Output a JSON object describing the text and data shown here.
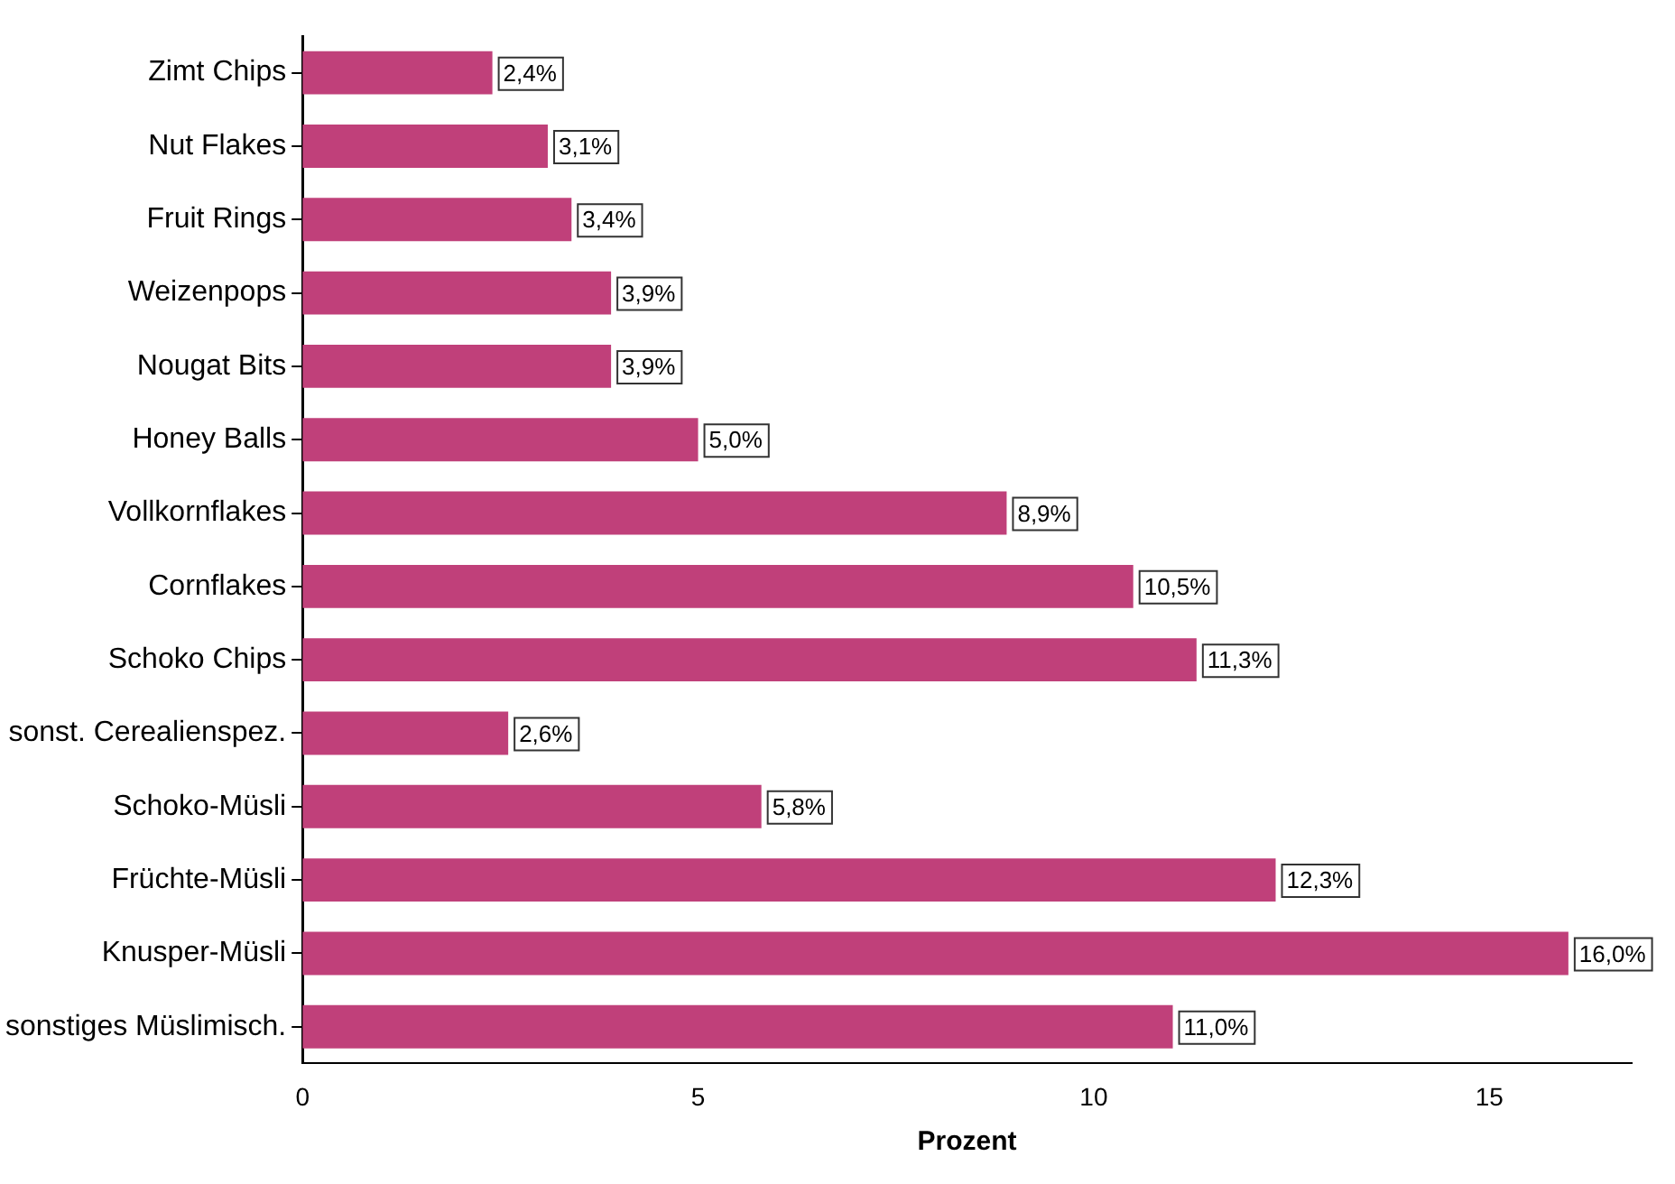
{
  "chart_data": {
    "type": "bar",
    "orientation": "horizontal",
    "xlabel": "Prozent",
    "categories": [
      "Zimt Chips",
      "Nut Flakes",
      "Fruit Rings",
      "Weizenpops",
      "Nougat Bits",
      "Honey Balls",
      "Vollkornflakes",
      "Cornflakes",
      "Schoko Chips",
      "sonst. Cerealienspez.",
      "Schoko-Müsli",
      "Früchte-Müsli",
      "Knusper-Müsli",
      "sonstiges Müslimisch."
    ],
    "values": [
      2.4,
      3.1,
      3.4,
      3.9,
      3.9,
      5.0,
      8.9,
      10.5,
      11.3,
      2.6,
      5.8,
      12.3,
      16.0,
      11.0
    ],
    "value_labels": [
      "2,4%",
      "3,1%",
      "3,4%",
      "3,9%",
      "3,9%",
      "5,0%",
      "8,9%",
      "10,5%",
      "11,3%",
      "2,6%",
      "5,8%",
      "12,3%",
      "16,0%",
      "11,0%"
    ],
    "color": "#c0407a",
    "xlim": [
      0,
      16.8
    ],
    "xticks": [
      0,
      5,
      10,
      15
    ],
    "grid": false,
    "legend": false
  }
}
